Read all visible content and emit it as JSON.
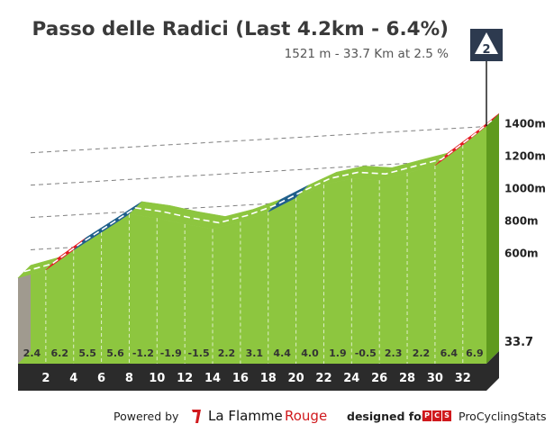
{
  "header": {
    "title": "Passo delle Radici (Last 4.2km - 6.4%)",
    "subtitle": "1521 m - 33.7 Km at 2.5 %"
  },
  "badge": {
    "category": "2",
    "icon": "climb-category-icon"
  },
  "footer": {
    "powered_by": "Powered by",
    "brand_part1": "La Flamme",
    "brand_part2": "Rouge",
    "designed_for": "designed for",
    "pcs_letters": [
      "P",
      "C",
      "S"
    ],
    "pcs_name": "ProCyclingStats"
  },
  "colors": {
    "green": "#8dc63f",
    "red": "#e31b23",
    "blue": "#1f5f8b",
    "base": "#2b2b2b",
    "start_wall": "#a09a8f",
    "right_wall": "#5f9a1e"
  },
  "chart_data": {
    "type": "area",
    "title": "Passo delle Radici (Last 4.2km - 6.4%)",
    "x_unit": "km",
    "y_unit": "m",
    "km_labels": [
      "2",
      "4",
      "6",
      "8",
      "10",
      "12",
      "14",
      "16",
      "18",
      "20",
      "22",
      "24",
      "26",
      "28",
      "30",
      "32"
    ],
    "end_km_label": "33.7",
    "elevation_ticks": [
      "600m",
      "800m",
      "1000m",
      "1200m",
      "1400m"
    ],
    "segments": [
      {
        "end_km": 2,
        "gradient": "2.4",
        "difficulty": "green"
      },
      {
        "end_km": 4,
        "gradient": "6.2",
        "difficulty": "red"
      },
      {
        "end_km": 6,
        "gradient": "5.5",
        "difficulty": "blue"
      },
      {
        "end_km": 8,
        "gradient": "5.6",
        "difficulty": "blue"
      },
      {
        "end_km": 10,
        "gradient": "-1.2",
        "difficulty": "green"
      },
      {
        "end_km": 12,
        "gradient": "-1.9",
        "difficulty": "green"
      },
      {
        "end_km": 14,
        "gradient": "-1.5",
        "difficulty": "green"
      },
      {
        "end_km": 16,
        "gradient": "2.2",
        "difficulty": "green"
      },
      {
        "end_km": 18,
        "gradient": "3.1",
        "difficulty": "green"
      },
      {
        "end_km": 20,
        "gradient": "4.4",
        "difficulty": "blue"
      },
      {
        "end_km": 22,
        "gradient": "4.0",
        "difficulty": "green"
      },
      {
        "end_km": 24,
        "gradient": "1.9",
        "difficulty": "green"
      },
      {
        "end_km": 26,
        "gradient": "-0.5",
        "difficulty": "green"
      },
      {
        "end_km": 28,
        "gradient": "2.3",
        "difficulty": "green"
      },
      {
        "end_km": 30,
        "gradient": "2.2",
        "difficulty": "green"
      },
      {
        "end_km": 32,
        "gradient": "6.4",
        "difficulty": "red"
      },
      {
        "end_km": 33.7,
        "gradient": "6.9",
        "difficulty": "red"
      }
    ]
  }
}
